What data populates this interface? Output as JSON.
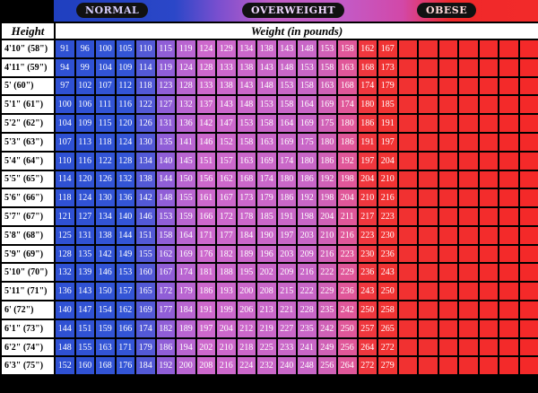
{
  "band": {
    "normal": "NORMAL",
    "overweight": "OVERWEIGHT",
    "obese": "OBESE"
  },
  "headers": {
    "height": "Height",
    "weight": "Weight (in pounds)"
  },
  "heights": [
    "4'10\" (58\")",
    "4'11\" (59\")",
    "5' (60\")",
    "5'1\" (61\")",
    "5'2\" (62\")",
    "5'3\" (63\")",
    "5'4\" (64\")",
    "5'5\" (65\")",
    "5'6\" (66\")",
    "5'7\" (67\")",
    "5'8\" (68\")",
    "5'9\" (69\")",
    "5'10\" (70\")",
    "5'11\" (71\")",
    "6' (72\")",
    "6'1\" (73\")",
    "6'2\" (74\")",
    "6'3\" (75\")"
  ],
  "rows": [
    [
      91,
      96,
      100,
      105,
      110,
      115,
      119,
      124,
      129,
      134,
      138,
      143,
      148,
      153,
      158,
      162,
      167
    ],
    [
      94,
      99,
      104,
      109,
      114,
      119,
      124,
      128,
      133,
      138,
      143,
      148,
      153,
      158,
      163,
      168,
      173
    ],
    [
      97,
      102,
      107,
      112,
      118,
      123,
      128,
      133,
      138,
      143,
      148,
      153,
      158,
      163,
      168,
      174,
      179
    ],
    [
      100,
      106,
      111,
      116,
      122,
      127,
      132,
      137,
      143,
      148,
      153,
      158,
      164,
      169,
      174,
      180,
      185
    ],
    [
      104,
      109,
      115,
      120,
      126,
      131,
      136,
      142,
      147,
      153,
      158,
      164,
      169,
      175,
      180,
      186,
      191
    ],
    [
      107,
      113,
      118,
      124,
      130,
      135,
      141,
      146,
      152,
      158,
      163,
      169,
      175,
      180,
      186,
      191,
      197
    ],
    [
      110,
      116,
      122,
      128,
      134,
      140,
      145,
      151,
      157,
      163,
      169,
      174,
      180,
      186,
      192,
      197,
      204
    ],
    [
      114,
      120,
      126,
      132,
      138,
      144,
      150,
      156,
      162,
      168,
      174,
      180,
      186,
      192,
      198,
      204,
      210
    ],
    [
      118,
      124,
      130,
      136,
      142,
      148,
      155,
      161,
      167,
      173,
      179,
      186,
      192,
      198,
      204,
      210,
      216
    ],
    [
      121,
      127,
      134,
      140,
      146,
      153,
      159,
      166,
      172,
      178,
      185,
      191,
      198,
      204,
      211,
      217,
      223
    ],
    [
      125,
      131,
      138,
      144,
      151,
      158,
      164,
      171,
      177,
      184,
      190,
      197,
      203,
      210,
      216,
      223,
      230
    ],
    [
      128,
      135,
      142,
      149,
      155,
      162,
      169,
      176,
      182,
      189,
      196,
      203,
      209,
      216,
      223,
      230,
      236
    ],
    [
      132,
      139,
      146,
      153,
      160,
      167,
      174,
      181,
      188,
      195,
      202,
      209,
      216,
      222,
      229,
      236,
      243
    ],
    [
      136,
      143,
      150,
      157,
      165,
      172,
      179,
      186,
      193,
      200,
      208,
      215,
      222,
      229,
      236,
      243,
      250
    ],
    [
      140,
      147,
      154,
      162,
      169,
      177,
      184,
      191,
      199,
      206,
      213,
      221,
      228,
      235,
      242,
      250,
      258
    ],
    [
      144,
      151,
      159,
      166,
      174,
      182,
      189,
      197,
      204,
      212,
      219,
      227,
      235,
      242,
      250,
      257,
      265
    ],
    [
      148,
      155,
      163,
      171,
      179,
      186,
      194,
      202,
      210,
      218,
      225,
      233,
      241,
      249,
      256,
      264,
      272
    ],
    [
      152,
      160,
      168,
      176,
      184,
      192,
      200,
      208,
      216,
      224,
      232,
      240,
      248,
      256,
      264,
      272,
      279
    ]
  ],
  "colors": {
    "normal": "#2f4fd2",
    "overweight": "#c765c8",
    "obese": "#f0312f"
  }
}
